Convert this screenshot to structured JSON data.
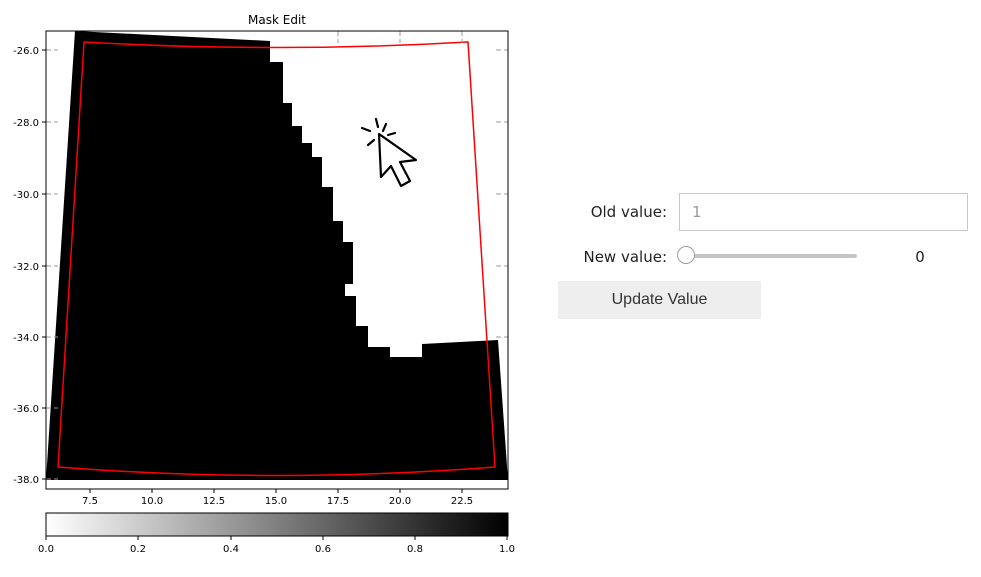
{
  "figure": {
    "title": "Mask Edit",
    "y_ticks": [
      "-26.0",
      "-28.0",
      "-30.0",
      "-32.0",
      "-34.0",
      "-36.0",
      "-38.0"
    ],
    "x_ticks": [
      "7.5",
      "10.0",
      "12.5",
      "15.0",
      "17.5",
      "20.0",
      "22.5"
    ],
    "colorbar": {
      "ticks": [
        "0.0",
        "0.2",
        "0.4",
        "0.6",
        "0.8",
        "1.0"
      ],
      "colormap": "gray_r",
      "low_color": "#ffffff",
      "high_color": "#000000"
    },
    "mask_color": "#000000",
    "unmasked_color": "#ffffff",
    "boundary_color": "#ff0000",
    "cursor_icon": "pointer-click-icon"
  },
  "controls": {
    "old_value_label": "Old value:",
    "old_value": "1",
    "new_value_label": "New value:",
    "new_value": 0,
    "new_value_display": "0",
    "update_button_label": "Update Value"
  }
}
